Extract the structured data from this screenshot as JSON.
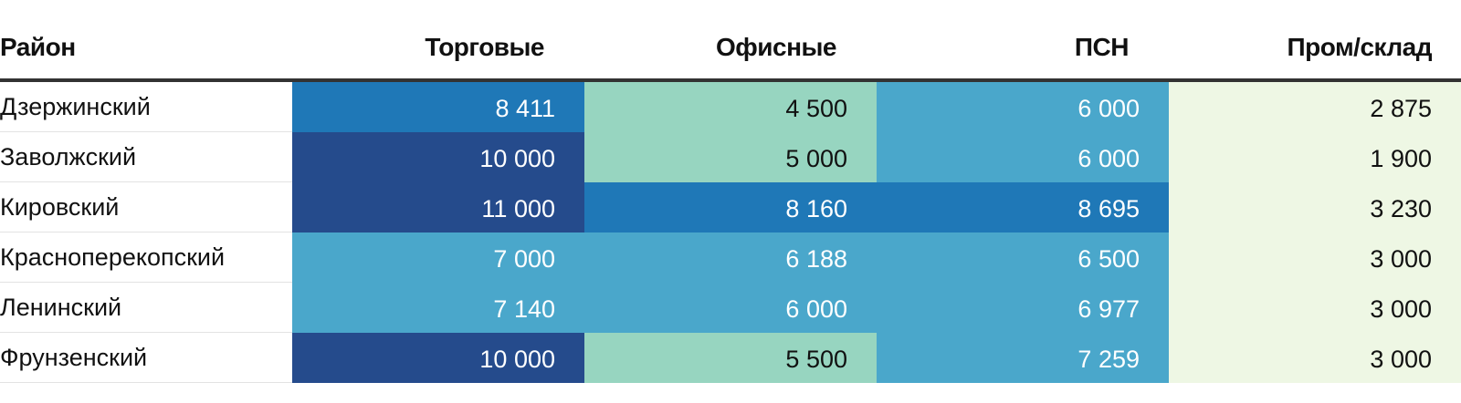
{
  "chart_data": {
    "type": "table",
    "columns": [
      "Район",
      "Торговые",
      "Офисные",
      "ПСН",
      "Пром/склад"
    ],
    "rows": [
      {
        "district": "Дзержинский",
        "values": [
          "8 411",
          "4 500",
          "6 000",
          "2 875"
        ]
      },
      {
        "district": "Заволжский",
        "values": [
          "10 000",
          "5 000",
          "6 000",
          "1 900"
        ]
      },
      {
        "district": "Кировский",
        "values": [
          "11 000",
          "8 160",
          "8 695",
          "3 230"
        ]
      },
      {
        "district": "Красноперекопский",
        "values": [
          "7 000",
          "6 188",
          "6 500",
          "3 000"
        ]
      },
      {
        "district": "Ленинский",
        "values": [
          "7 140",
          "6 000",
          "6 977",
          "3 000"
        ]
      },
      {
        "district": "Фрунзенский",
        "values": [
          "10 000",
          "5 500",
          "7 259",
          "3 000"
        ]
      }
    ],
    "numeric": [
      [
        8411,
        4500,
        6000,
        2875
      ],
      [
        10000,
        5000,
        6000,
        1900
      ],
      [
        11000,
        8160,
        8695,
        3230
      ],
      [
        7000,
        6188,
        6500,
        3000
      ],
      [
        7140,
        6000,
        6977,
        3000
      ],
      [
        10000,
        5500,
        7259,
        3000
      ]
    ],
    "color_scale": [
      {
        "min": 0,
        "max": 4000,
        "color": "#eef7e4",
        "text": "#111111"
      },
      {
        "min": 4000,
        "max": 6000,
        "color": "#97d5c0",
        "text": "#111111"
      },
      {
        "min": 6000,
        "max": 8000,
        "color": "#4aa7cb",
        "text": "#ffffff"
      },
      {
        "min": 8000,
        "max": 10000,
        "color": "#1f78b7",
        "text": "#ffffff"
      },
      {
        "min": 10000,
        "max": 999999,
        "color": "#254b8c",
        "text": "#ffffff"
      }
    ]
  }
}
